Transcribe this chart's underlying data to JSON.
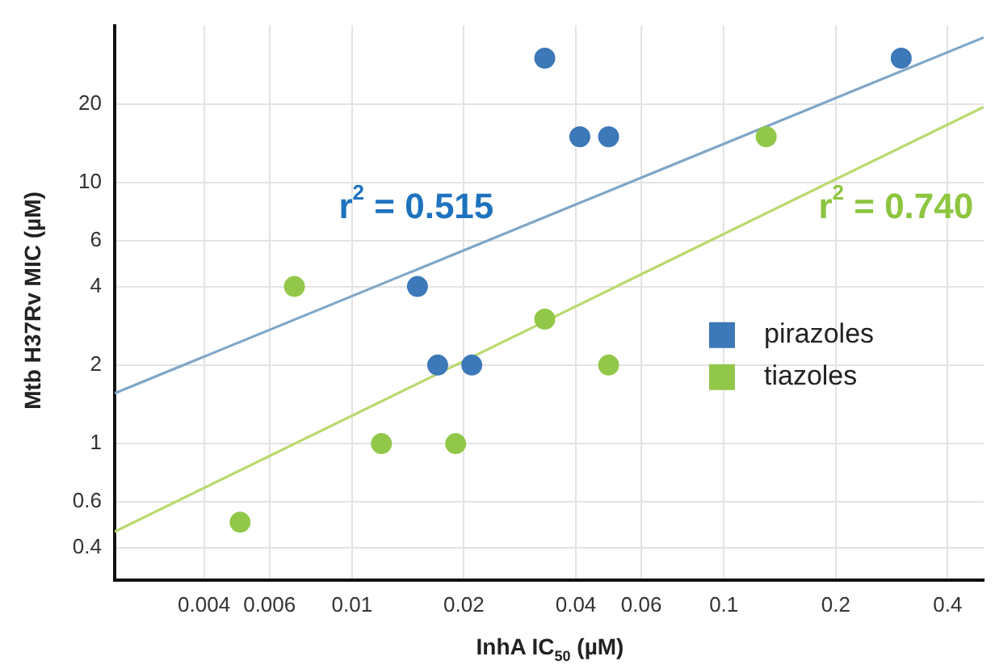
{
  "chart_data": {
    "type": "scatter",
    "xlabel": "InhA IC$_{50}$ (µM)",
    "ylabel": "Mtb H37Rv MIC (µM)",
    "log": "xy",
    "grid": true,
    "legend": "right",
    "marker": "circle",
    "xlim": [
      0.0023,
      0.5
    ],
    "ylim": [
      0.3,
      40
    ],
    "xticks": [
      0.004,
      0.006,
      0.01,
      0.02,
      0.04,
      0.06,
      0.1,
      0.2,
      0.4
    ],
    "yticks": [
      0.4,
      0.6,
      1,
      2,
      4,
      6,
      10,
      20
    ],
    "series": [
      {
        "name": "pirazoles",
        "color": "#3d78b8",
        "x": [
          0.015,
          0.017,
          0.021,
          0.033,
          0.041,
          0.049,
          0.3
        ],
        "values": [
          4,
          2,
          2,
          30,
          15,
          15,
          30
        ]
      },
      {
        "name": "tiazoles",
        "color": "#92c84a",
        "x": [
          0.007,
          0.005,
          0.012,
          0.019,
          0.033,
          0.049,
          0.13
        ],
        "values": [
          4,
          0.5,
          1,
          1,
          3,
          2,
          15
        ]
      },
      {
        "type": "line",
        "marker": "none",
        "color": "#7ea6c9",
        "x": [
          0.0023,
          0.5
        ],
        "values": [
          1.56,
          36
        ]
      },
      {
        "type": "line",
        "marker": "none",
        "color": "#b9d96e",
        "x": [
          0.0023,
          0.5
        ],
        "values": [
          0.46,
          19.5
        ]
      }
    ],
    "annotations": [
      "r$^{2}$ = 0.515",
      "r$^{2}$ = 0.740"
    ]
  }
}
